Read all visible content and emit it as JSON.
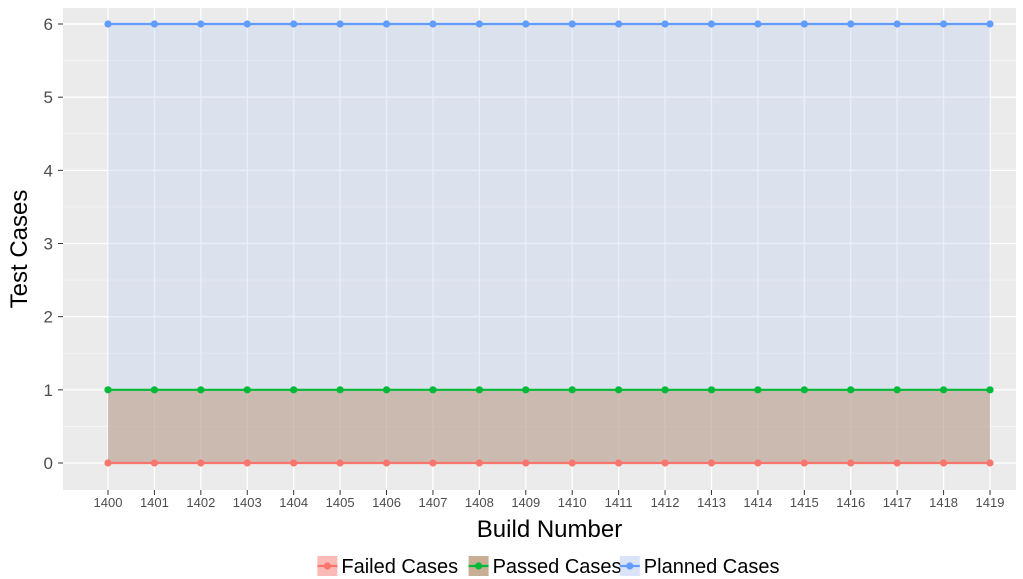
{
  "chart_data": {
    "type": "area",
    "title": "",
    "xlabel": "Build Number",
    "ylabel": "Test Cases",
    "x": [
      1400,
      1401,
      1402,
      1403,
      1404,
      1405,
      1406,
      1407,
      1408,
      1409,
      1410,
      1411,
      1412,
      1413,
      1414,
      1415,
      1416,
      1417,
      1418,
      1419
    ],
    "ylim": [
      0,
      6
    ],
    "yticks": [
      0,
      1,
      2,
      3,
      4,
      5,
      6
    ],
    "grid": true,
    "legend_position": "bottom",
    "series": [
      {
        "name": "Failed Cases",
        "values": [
          0,
          0,
          0,
          0,
          0,
          0,
          0,
          0,
          0,
          0,
          0,
          0,
          0,
          0,
          0,
          0,
          0,
          0,
          0,
          0
        ],
        "color": "#f8766d"
      },
      {
        "name": "Passed Cases",
        "values": [
          1,
          1,
          1,
          1,
          1,
          1,
          1,
          1,
          1,
          1,
          1,
          1,
          1,
          1,
          1,
          1,
          1,
          1,
          1,
          1
        ],
        "color": "#00ba38"
      },
      {
        "name": "Planned Cases",
        "values": [
          6,
          6,
          6,
          6,
          6,
          6,
          6,
          6,
          6,
          6,
          6,
          6,
          6,
          6,
          6,
          6,
          6,
          6,
          6,
          6
        ],
        "color": "#619cff"
      }
    ]
  }
}
